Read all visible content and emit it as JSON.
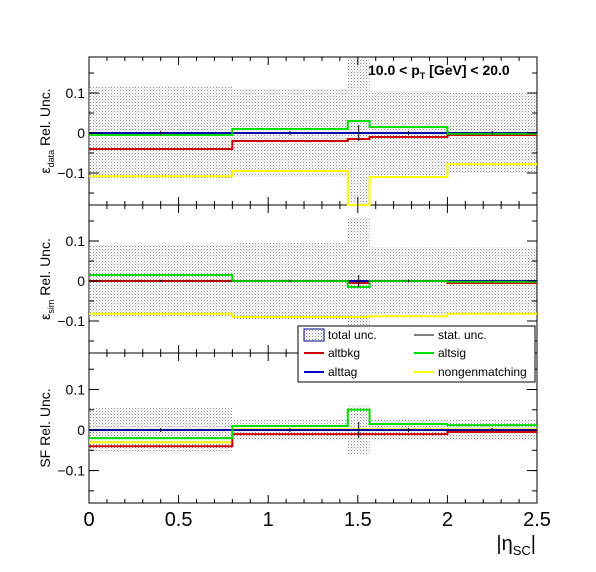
{
  "chart_data": {
    "type": "step",
    "annotation": "10.0 < p_T [GeV] < 20.0",
    "xlabel": "|η_SC|",
    "xlim": [
      0,
      2.5
    ],
    "x_ticks": [
      "0",
      "0.5",
      "1",
      "1.5",
      "2",
      "2.5"
    ],
    "bin_edges": [
      0,
      0.8,
      1.444,
      1.566,
      2.0,
      2.5
    ],
    "colors": {
      "altbkg": "#cc0000",
      "altsig": "#00dd00",
      "alttag": "#0000cc",
      "nongenmatching": "#ffff00",
      "stat": "#000000",
      "total_fill": "#9a9a9a"
    },
    "legend": {
      "items": [
        {
          "key": "total",
          "label": "total unc.",
          "style": "hatch"
        },
        {
          "key": "stat",
          "label": "stat. unc.",
          "style": "line"
        },
        {
          "key": "altbkg",
          "label": "altbkg",
          "style": "line"
        },
        {
          "key": "altsig",
          "label": "altsig",
          "style": "line"
        },
        {
          "key": "alttag",
          "label": "alttag",
          "style": "line"
        },
        {
          "key": "nongenmatching",
          "label": "nongenmatching",
          "style": "line"
        }
      ]
    },
    "panels": [
      {
        "ylabel": "ε_data Rel. Unc.",
        "ylim": [
          -0.18,
          0.19
        ],
        "y_ticks": [
          "0.1",
          "0",
          "−0.1"
        ],
        "total_unc": [
          0.115,
          0.11,
          0.3,
          0.105,
          0.1
        ],
        "series": {
          "altbkg": [
            -0.04,
            -0.02,
            -0.015,
            -0.01,
            -0.005
          ],
          "altsig": [
            -0.005,
            0.01,
            0.03,
            0.015,
            -0.002
          ],
          "alttag": [
            0,
            0,
            0,
            0,
            0
          ],
          "nongenmatching": [
            -0.108,
            -0.095,
            -0.2,
            -0.11,
            -0.078
          ],
          "stat": [
            0.005,
            0.005,
            0.02,
            0.005,
            0.005
          ]
        }
      },
      {
        "ylabel": "ε_sim Rel. Unc.",
        "ylim": [
          -0.18,
          0.19
        ],
        "y_ticks": [
          "0.1",
          "0",
          "−0.1"
        ],
        "total_unc": [
          0.09,
          0.095,
          0.16,
          0.085,
          0.085
        ],
        "series": {
          "altbkg": [
            0,
            0,
            -0.005,
            0,
            -0.005
          ],
          "altsig": [
            0.015,
            0,
            -0.015,
            0,
            -0.002
          ],
          "alttag": [
            0,
            0,
            0,
            0,
            0
          ],
          "nongenmatching": [
            -0.082,
            -0.09,
            -0.09,
            -0.088,
            -0.082
          ],
          "stat": [
            0.003,
            0.003,
            0.015,
            0.003,
            0.003
          ]
        }
      },
      {
        "ylabel": "SF Rel. Unc.",
        "ylim": [
          -0.18,
          0.19
        ],
        "y_ticks": [
          "0.1",
          "0",
          "−0.1"
        ],
        "total_unc": [
          0.055,
          0.025,
          0.06,
          0.025,
          0.025
        ],
        "series": {
          "altbkg": [
            -0.04,
            -0.01,
            -0.01,
            -0.01,
            -0.005
          ],
          "altsig": [
            -0.02,
            0.01,
            0.05,
            0.015,
            0.012
          ],
          "alttag": [
            0,
            0,
            0,
            0,
            0
          ],
          "nongenmatching": [
            -0.03,
            0.002,
            0.002,
            0.002,
            0.002
          ],
          "stat": [
            0.005,
            0.005,
            0.02,
            0.005,
            0.005
          ]
        }
      }
    ]
  }
}
